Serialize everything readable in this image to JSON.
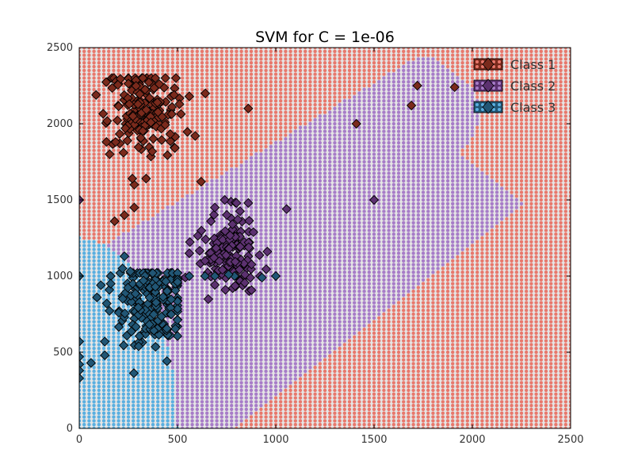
{
  "chart_data": {
    "type": "scatter",
    "title": "SVM for C = 1e-06",
    "xlabel": "",
    "ylabel": "",
    "xlim": [
      0,
      2500
    ],
    "ylim": [
      0,
      2500
    ],
    "xticks": [
      "0",
      "500",
      "1000",
      "1500",
      "2000",
      "2500"
    ],
    "yticks": [
      "0",
      "500",
      "1000",
      "1500",
      "2000",
      "2500"
    ],
    "grid": false,
    "legend": "top-right",
    "background_color": "#e5e5e5",
    "region_grid_step": 25,
    "regions": {
      "class2_band": {
        "upper_line": [
          [
            0,
            1100
          ],
          [
            1800,
            2500
          ]
        ],
        "lower_line": [
          [
            0,
            0
          ],
          [
            2500,
            2500
          ]
        ],
        "rounded_ends": true,
        "shift": 780
      },
      "class3_region": {
        "xmax": 500,
        "ymax": 1250,
        "lower_bound_x": 420
      }
    },
    "series": [
      {
        "name": "Class 1",
        "region_color": "#e8786c",
        "marker_color": "#7a2a1c",
        "cluster": {
          "cx": 330,
          "cy": 2080,
          "sx": 90,
          "sy": 140,
          "n": 170
        },
        "points": [
          [
            860,
            2100
          ],
          [
            1410,
            2000
          ],
          [
            1690,
            2120
          ],
          [
            1720,
            2250
          ],
          [
            1910,
            2240
          ],
          [
            180,
            1360
          ],
          [
            230,
            1400
          ],
          [
            280,
            1450
          ],
          [
            340,
            1640
          ],
          [
            280,
            1600
          ],
          [
            560,
            2180
          ],
          [
            590,
            1920
          ],
          [
            155,
            1800
          ],
          [
            225,
            1810
          ],
          [
            185,
            1880
          ],
          [
            270,
            1640
          ],
          [
            620,
            1620
          ]
        ]
      },
      {
        "name": "Class 2",
        "region_color": "#a77cc8",
        "marker_color": "#5c3170",
        "cluster": {
          "cx": 770,
          "cy": 1150,
          "sx": 75,
          "sy": 115,
          "n": 145
        },
        "points": [
          [
            0,
            1500
          ],
          [
            1055,
            1440
          ],
          [
            1500,
            1500
          ],
          [
            690,
            1450
          ],
          [
            740,
            1500
          ],
          [
            800,
            1480
          ],
          [
            860,
            1480
          ],
          [
            920,
            1000
          ],
          [
            670,
            1360
          ],
          [
            640,
            1100
          ],
          [
            560,
            1150
          ]
        ]
      },
      {
        "name": "Class 3",
        "region_color": "#5aafe0",
        "marker_color": "#215675",
        "cluster": {
          "cx": 370,
          "cy": 820,
          "sx": 85,
          "sy": 150,
          "n": 200
        },
        "points": [
          [
            0,
            1000
          ],
          [
            0,
            570
          ],
          [
            0,
            470
          ],
          [
            0,
            420
          ],
          [
            0,
            380
          ],
          [
            0,
            330
          ],
          [
            60,
            430
          ],
          [
            130,
            480
          ],
          [
            130,
            570
          ],
          [
            160,
            1000
          ],
          [
            220,
            1050
          ],
          [
            230,
            1130
          ],
          [
            260,
            1030
          ],
          [
            160,
            950
          ],
          [
            110,
            940
          ],
          [
            90,
            860
          ],
          [
            140,
            820
          ],
          [
            560,
            1000
          ],
          [
            640,
            1000
          ],
          [
            790,
            1000
          ],
          [
            930,
            990
          ],
          [
            1000,
            1000
          ],
          [
            690,
            1000
          ],
          [
            760,
            1010
          ]
        ]
      }
    ]
  }
}
